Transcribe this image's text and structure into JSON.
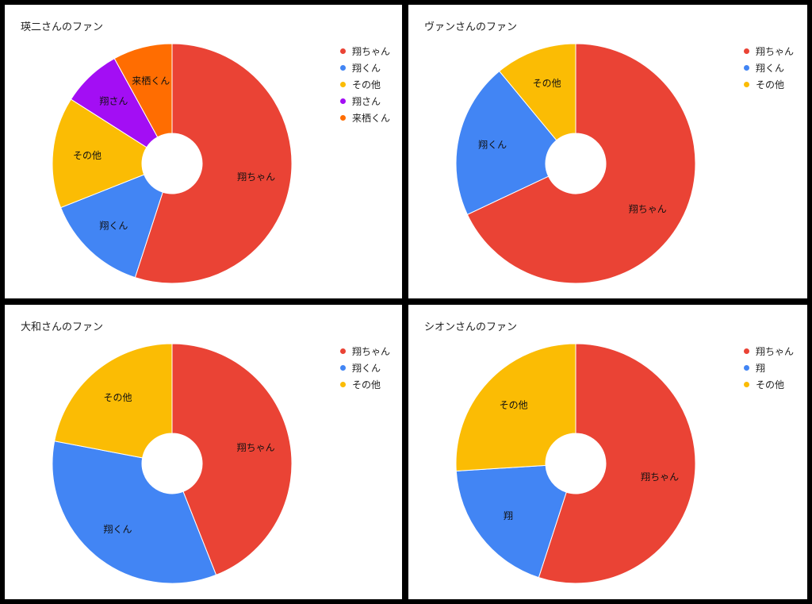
{
  "colors": {
    "red": "#EA4335",
    "blue": "#4285F4",
    "yellow": "#FBBC04",
    "purple": "#A30EF4",
    "orange": "#FF6D01"
  },
  "chart_data": [
    {
      "type": "pie",
      "donut": true,
      "title": "瑛二さんのファン",
      "legend": "right",
      "series": [
        {
          "name": "翔ちゃん",
          "value": 55,
          "color": "#EA4335"
        },
        {
          "name": "翔くん",
          "value": 14,
          "color": "#4285F4"
        },
        {
          "name": "その他",
          "value": 15,
          "color": "#FBBC04"
        },
        {
          "name": "翔さん",
          "value": 8,
          "color": "#A30EF4"
        },
        {
          "name": "来栖くん",
          "value": 8,
          "color": "#FF6D01"
        }
      ]
    },
    {
      "type": "pie",
      "donut": true,
      "title": "ヴァンさんのファン",
      "legend": "right",
      "series": [
        {
          "name": "翔ちゃん",
          "value": 68,
          "color": "#EA4335"
        },
        {
          "name": "翔くん",
          "value": 21,
          "color": "#4285F4"
        },
        {
          "name": "その他",
          "value": 11,
          "color": "#FBBC04"
        }
      ]
    },
    {
      "type": "pie",
      "donut": true,
      "title": "大和さんのファン",
      "legend": "right",
      "series": [
        {
          "name": "翔ちゃん",
          "value": 44,
          "color": "#EA4335"
        },
        {
          "name": "翔くん",
          "value": 34,
          "color": "#4285F4"
        },
        {
          "name": "その他",
          "value": 22,
          "color": "#FBBC04"
        }
      ]
    },
    {
      "type": "pie",
      "donut": true,
      "title": "シオンさんのファン",
      "legend": "right",
      "series": [
        {
          "name": "翔ちゃん",
          "value": 55,
          "color": "#EA4335"
        },
        {
          "name": "翔",
          "value": 19,
          "color": "#4285F4"
        },
        {
          "name": "その他",
          "value": 26,
          "color": "#FBBC04"
        }
      ]
    }
  ]
}
